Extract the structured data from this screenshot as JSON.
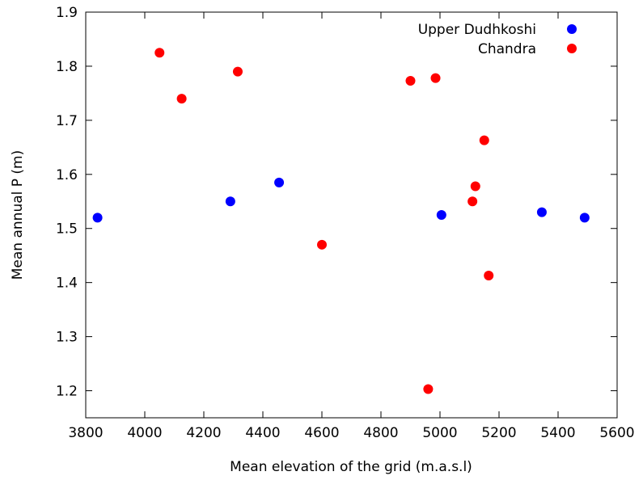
{
  "chart_data": {
    "type": "scatter",
    "xlabel": "Mean elevation of the grid (m.a.s.l)",
    "ylabel": "Mean annual P (m)",
    "xlim": [
      3800,
      5600
    ],
    "ylim": [
      1.15,
      1.9
    ],
    "xticks": [
      3800,
      4000,
      4200,
      4400,
      4600,
      4800,
      5000,
      5200,
      5400,
      5600
    ],
    "yticks": [
      1.2,
      1.3,
      1.4,
      1.5,
      1.6,
      1.7,
      1.8,
      1.9
    ],
    "grid": false,
    "legend_position": "top-right",
    "series": [
      {
        "name": "Upper Dudhkoshi",
        "color": "#0000ff",
        "points": [
          {
            "x": 3840,
            "y": 1.52
          },
          {
            "x": 4290,
            "y": 1.55
          },
          {
            "x": 4455,
            "y": 1.585
          },
          {
            "x": 5005,
            "y": 1.525
          },
          {
            "x": 5345,
            "y": 1.53
          },
          {
            "x": 5490,
            "y": 1.52
          }
        ]
      },
      {
        "name": "Chandra",
        "color": "#ff0000",
        "points": [
          {
            "x": 4050,
            "y": 1.825
          },
          {
            "x": 4125,
            "y": 1.74
          },
          {
            "x": 4315,
            "y": 1.79
          },
          {
            "x": 4600,
            "y": 1.47
          },
          {
            "x": 4900,
            "y": 1.773
          },
          {
            "x": 4960,
            "y": 1.203
          },
          {
            "x": 4985,
            "y": 1.778
          },
          {
            "x": 5110,
            "y": 1.55
          },
          {
            "x": 5120,
            "y": 1.578
          },
          {
            "x": 5150,
            "y": 1.663
          },
          {
            "x": 5165,
            "y": 1.413
          }
        ]
      }
    ]
  }
}
